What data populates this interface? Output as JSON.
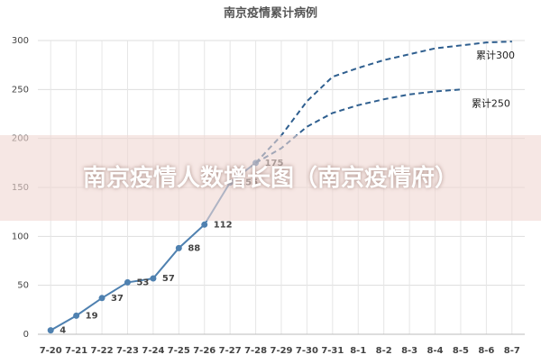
{
  "chart_data": {
    "type": "line",
    "title": "南京疫情累计病例",
    "categories": [
      "7-20",
      "7-21",
      "7-22",
      "7-23",
      "7-24",
      "7-25",
      "7-26",
      "7-27",
      "7-28",
      "7-29",
      "7-30",
      "7-31",
      "8-1",
      "8-2",
      "8-3",
      "8-4",
      "8-5",
      "8-6",
      "8-7"
    ],
    "series": [
      {
        "values": [
          4,
          19,
          37,
          53,
          57,
          88,
          112,
          155,
          175,
          null,
          null,
          null,
          null,
          null,
          null,
          null,
          null,
          null,
          null
        ],
        "color": "#4f81b0",
        "style": "solid",
        "markers": true
      },
      {
        "name": "累计300",
        "values": [
          null,
          null,
          null,
          null,
          null,
          null,
          null,
          null,
          175,
          203,
          238,
          263,
          272,
          280,
          286,
          292,
          295,
          298,
          299
        ],
        "color": "#2f5f8f",
        "style": "dashed",
        "markers": false
      },
      {
        "name": "累计250",
        "values": [
          null,
          null,
          null,
          null,
          null,
          null,
          null,
          null,
          175,
          190,
          212,
          226,
          234,
          240,
          245,
          248,
          250,
          null,
          null
        ],
        "color": "#2f5f8f",
        "style": "dashed",
        "markers": false
      }
    ],
    "ylim": [
      0,
      300
    ],
    "yticks": [
      0,
      50,
      100,
      150,
      200,
      250,
      300
    ],
    "grid": true,
    "banner": "南京疫情人数增长图（南京疫情府）"
  }
}
